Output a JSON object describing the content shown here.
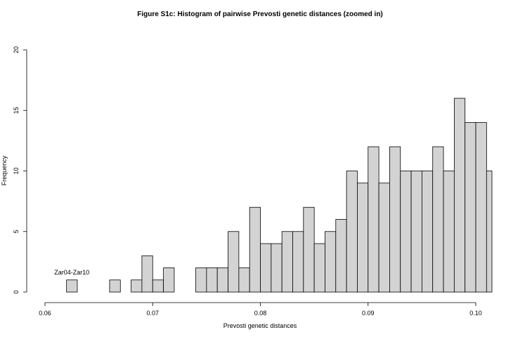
{
  "chart_data": {
    "type": "bar",
    "title": "Figure S1c: Histogram of pairwise Prevosti genetic distances (zoomed in)",
    "xlabel": "Prevosti genetic distances",
    "ylabel": "Frequency",
    "xlim": [
      0.06,
      0.1015
    ],
    "ylim": [
      0,
      20
    ],
    "bin_width": 0.001,
    "bin_start": 0.062,
    "values": [
      1,
      0,
      0,
      0,
      1,
      0,
      1,
      3,
      1,
      2,
      0,
      0,
      2,
      2,
      2,
      5,
      2,
      7,
      4,
      4,
      5,
      5,
      7,
      4,
      5,
      6,
      10,
      9,
      12,
      9,
      12,
      10,
      10,
      10,
      12,
      10,
      16,
      14,
      14,
      10
    ],
    "bar_color": "#d3d3d3",
    "xticks": [
      0.06,
      0.07,
      0.08,
      0.09,
      0.1
    ],
    "xtick_labels": [
      "0.06",
      "0.07",
      "0.08",
      "0.09",
      "0.10"
    ],
    "yticks": [
      0,
      5,
      10,
      15,
      20
    ],
    "ytick_labels": [
      "0",
      "5",
      "10",
      "15",
      "20"
    ],
    "annotation": {
      "text": "Zar04-Zar10",
      "x": 0.0625,
      "y": 1
    }
  }
}
